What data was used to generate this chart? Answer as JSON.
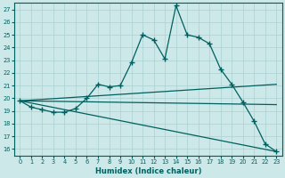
{
  "xlabel": "Humidex (Indice chaleur)",
  "bg_color": "#cce8e8",
  "line_color": "#006060",
  "grid_color": "#aad0d0",
  "ylim": [
    15.5,
    27.5
  ],
  "xlim": [
    -0.5,
    23.5
  ],
  "yticks": [
    16,
    17,
    18,
    19,
    20,
    21,
    22,
    23,
    24,
    25,
    26,
    27
  ],
  "xticks": [
    0,
    1,
    2,
    3,
    4,
    5,
    6,
    7,
    8,
    9,
    10,
    11,
    12,
    13,
    14,
    15,
    16,
    17,
    18,
    19,
    20,
    21,
    22,
    23
  ],
  "main_line_x": [
    0,
    1,
    2,
    3,
    4,
    5,
    6,
    7,
    8,
    9,
    10,
    11,
    12,
    13,
    14,
    15,
    16,
    17,
    18,
    19,
    20,
    21,
    22,
    23
  ],
  "main_line_y": [
    19.8,
    19.3,
    19.1,
    18.9,
    18.9,
    19.2,
    20.0,
    21.1,
    20.9,
    21.0,
    22.8,
    25.0,
    24.6,
    23.1,
    27.3,
    25.0,
    24.8,
    24.3,
    22.3,
    21.1,
    19.7,
    18.2,
    16.4,
    15.8
  ],
  "straight_lines": [
    {
      "x0": 0,
      "y0": 19.8,
      "x1": 23,
      "y1": 21.1
    },
    {
      "x0": 0,
      "y0": 19.8,
      "x1": 23,
      "y1": 19.5
    },
    {
      "x0": 0,
      "y0": 19.8,
      "x1": 23,
      "y1": 15.8
    }
  ]
}
